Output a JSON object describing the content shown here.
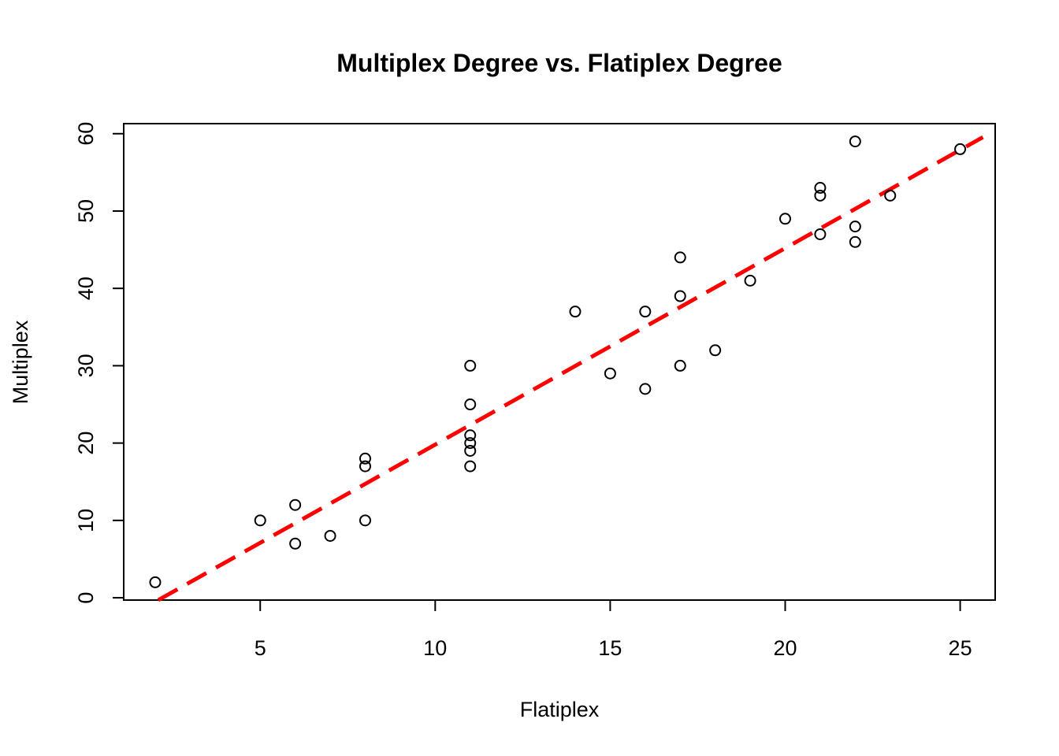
{
  "chart_data": {
    "type": "scatter",
    "title": "Multiplex Degree vs. Flatiplex Degree",
    "xlabel": "Flatiplex",
    "ylabel": "Multiplex",
    "xlim": [
      1.1,
      26.0
    ],
    "ylim": [
      -0.3,
      61.3
    ],
    "x_ticks": [
      5,
      10,
      15,
      20,
      25
    ],
    "y_ticks": [
      0,
      10,
      20,
      30,
      40,
      50,
      60
    ],
    "x_tick_labels": [
      "5",
      "10",
      "15",
      "20",
      "25"
    ],
    "y_tick_labels": [
      "0",
      "10",
      "20",
      "30",
      "40",
      "50",
      "60"
    ],
    "grid": false,
    "points": [
      {
        "x": 2,
        "y": 2
      },
      {
        "x": 5,
        "y": 10
      },
      {
        "x": 6,
        "y": 12
      },
      {
        "x": 6,
        "y": 7
      },
      {
        "x": 7,
        "y": 8
      },
      {
        "x": 8,
        "y": 18
      },
      {
        "x": 8,
        "y": 17
      },
      {
        "x": 8,
        "y": 10
      },
      {
        "x": 11,
        "y": 30
      },
      {
        "x": 11,
        "y": 25
      },
      {
        "x": 11,
        "y": 21
      },
      {
        "x": 11,
        "y": 20
      },
      {
        "x": 11,
        "y": 19
      },
      {
        "x": 11,
        "y": 17
      },
      {
        "x": 14,
        "y": 37
      },
      {
        "x": 15,
        "y": 29
      },
      {
        "x": 16,
        "y": 37
      },
      {
        "x": 16,
        "y": 27
      },
      {
        "x": 17,
        "y": 44
      },
      {
        "x": 17,
        "y": 39
      },
      {
        "x": 17,
        "y": 30
      },
      {
        "x": 18,
        "y": 32
      },
      {
        "x": 19,
        "y": 41
      },
      {
        "x": 20,
        "y": 49
      },
      {
        "x": 21,
        "y": 53
      },
      {
        "x": 21,
        "y": 52
      },
      {
        "x": 21,
        "y": 47
      },
      {
        "x": 22,
        "y": 59
      },
      {
        "x": 22,
        "y": 48
      },
      {
        "x": 22,
        "y": 46
      },
      {
        "x": 23,
        "y": 52
      },
      {
        "x": 25,
        "y": 58
      }
    ],
    "fit_line": {
      "slope": 2.54,
      "intercept": -5.6,
      "style": "dashed",
      "color": "#ff0000"
    },
    "point_color": "#000000"
  }
}
